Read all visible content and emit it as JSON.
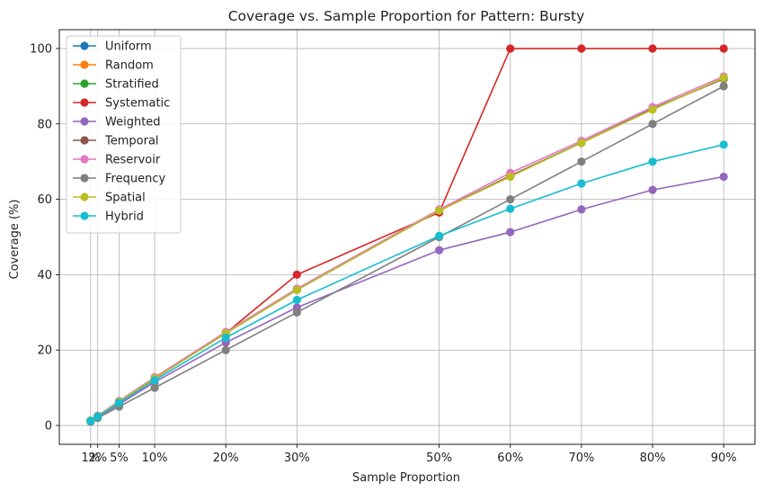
{
  "chart_data": {
    "type": "line",
    "title": "Coverage vs. Sample Proportion for Pattern: Bursty",
    "xlabel": "Sample Proportion",
    "ylabel": "Coverage (%)",
    "x": [
      1,
      2,
      5,
      10,
      20,
      30,
      50,
      60,
      70,
      80,
      90
    ],
    "x_tick_labels": [
      "1%",
      "2%",
      "5%",
      "10%",
      "20%",
      "30%",
      "50%",
      "60%",
      "70%",
      "80%",
      "90%"
    ],
    "xlim": [
      -3.4,
      94.4
    ],
    "ylim": [
      -5,
      105
    ],
    "y_ticks": [
      0,
      20,
      40,
      60,
      80,
      100
    ],
    "grid": true,
    "legend_position": "top-left",
    "series": [
      {
        "name": "Uniform",
        "color": "#1f77b4",
        "values": [
          1.3,
          2.5,
          6.3,
          12.5,
          24.5,
          36.0,
          57.0,
          66.2,
          75.0,
          84.0,
          92.0
        ]
      },
      {
        "name": "Random",
        "color": "#ff7f0e",
        "values": [
          1.3,
          2.5,
          6.3,
          12.5,
          24.5,
          36.0,
          57.0,
          66.2,
          75.0,
          84.0,
          92.0
        ]
      },
      {
        "name": "Stratified",
        "color": "#2ca02c",
        "values": [
          1.3,
          2.5,
          6.3,
          12.5,
          24.5,
          36.0,
          57.0,
          66.2,
          75.0,
          84.0,
          92.0
        ]
      },
      {
        "name": "Systematic",
        "color": "#d62728",
        "values": [
          1.3,
          2.5,
          6.3,
          12.5,
          24.5,
          40.0,
          56.5,
          100.0,
          100.0,
          100.0,
          100.0
        ]
      },
      {
        "name": "Weighted",
        "color": "#9467bd",
        "values": [
          1.1,
          2.2,
          5.6,
          11.5,
          22.0,
          31.3,
          46.5,
          51.3,
          57.3,
          62.5,
          66.0
        ]
      },
      {
        "name": "Temporal",
        "color": "#8c564b",
        "values": [
          1.3,
          2.5,
          6.3,
          12.5,
          24.5,
          36.0,
          57.0,
          66.2,
          75.0,
          84.0,
          92.0
        ]
      },
      {
        "name": "Reservoir",
        "color": "#e377c2",
        "values": [
          1.3,
          2.6,
          6.5,
          12.8,
          24.8,
          36.3,
          57.3,
          67.0,
          75.5,
          84.5,
          92.6
        ]
      },
      {
        "name": "Frequency",
        "color": "#7f7f7f",
        "values": [
          1.0,
          2.0,
          5.0,
          10.0,
          20.0,
          30.0,
          50.0,
          60.0,
          70.0,
          80.0,
          90.0
        ]
      },
      {
        "name": "Spatial",
        "color": "#bcbd22",
        "values": [
          1.3,
          2.5,
          6.3,
          12.5,
          24.5,
          36.0,
          57.0,
          66.0,
          75.0,
          83.8,
          92.2
        ]
      },
      {
        "name": "Hybrid",
        "color": "#17becf",
        "values": [
          1.2,
          2.4,
          6.0,
          12.0,
          23.3,
          33.3,
          50.3,
          57.5,
          64.2,
          70.0,
          74.5
        ]
      }
    ]
  }
}
